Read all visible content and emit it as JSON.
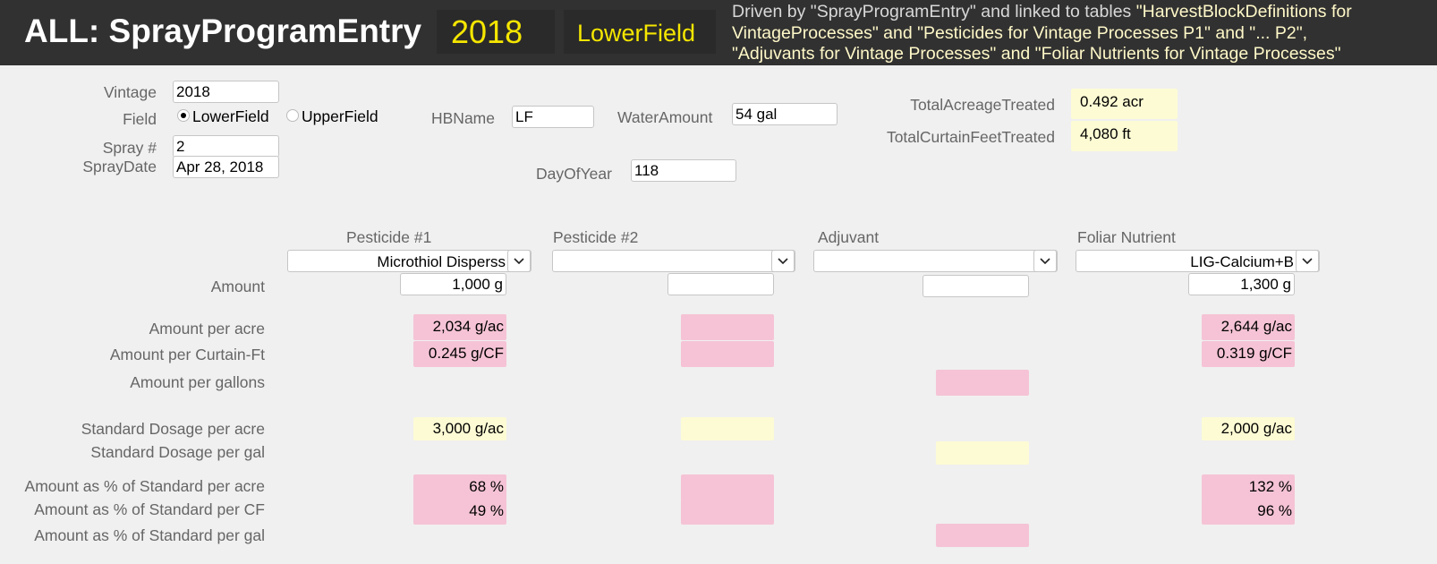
{
  "header": {
    "title": "ALL: SprayProgramEntry",
    "year": "2018",
    "field": "LowerField",
    "description_line1_a": "Driven by \"SprayProgramEntry\" and linked to tables ",
    "description_line1_b": "\"HarvestBlockDefinitions for",
    "description_line2": "VintageProcesses\" and \"Pesticides for Vintage Processes P1\" and \"... P2\",",
    "description_line3": "\"Adjuvants for Vintage Processes\" and \"Foliar Nutrients for Vintage Processes\""
  },
  "form": {
    "vintage_label": "Vintage",
    "vintage_value": "2018",
    "field_label": "Field",
    "field_options": [
      "LowerField",
      "UpperField"
    ],
    "field_selected": "LowerField",
    "spray_label": "Spray #",
    "spray_value": "2",
    "spraydate_label": "SprayDate",
    "spraydate_value": "Apr 28, 2018",
    "hbname_label": "HBName",
    "hbname_value": "LF",
    "water_label": "WaterAmount",
    "water_value": "54 gal",
    "dayofyear_label": "DayOfYear",
    "dayofyear_value": "118",
    "acreage_label": "TotalAcreageTreated",
    "acreage_value": "0.492 acr",
    "curtain_label": "TotalCurtainFeetTreated",
    "curtain_value": "4,080 ft"
  },
  "columns": {
    "p1": "Pesticide #1",
    "p2": "Pesticide #2",
    "adj": "Adjuvant",
    "fol": "Foliar Nutrient"
  },
  "selections": {
    "p1": "Microthiol Disperss",
    "p2": "",
    "adj": "",
    "fol": "LIG-Calcium+B"
  },
  "rows": {
    "amount": "Amount",
    "per_acre": "Amount  per acre",
    "per_cf": "Amount per  Curtain-Ft",
    "per_gal": "Amount per gallons",
    "std_acre": "Standard Dosage per acre",
    "std_gal": "Standard Dosage per gal",
    "pct_acre": "Amount as % of Standard per acre",
    "pct_cf": "Amount as % of Standard per CF",
    "pct_gal": "Amount as % of Standard per gal"
  },
  "values": {
    "p1": {
      "amount": "1,000 g",
      "per_acre": "2,034 g/ac",
      "per_cf": "0.245 g/CF",
      "std_acre": "3,000 g/ac",
      "pct_acre": "68 %",
      "pct_cf": "49 %"
    },
    "p2": {
      "amount": "",
      "per_acre": "",
      "per_cf": "",
      "std_acre": "",
      "pct_acre": "",
      "pct_cf": ""
    },
    "adj": {
      "amount": "",
      "per_gal": "",
      "std_gal": "",
      "pct_gal": ""
    },
    "fol": {
      "amount": "1,300 g",
      "per_acre": "2,644 g/ac",
      "per_cf": "0.319 g/CF",
      "std_acre": "2,000 g/ac",
      "pct_acre": "132 %",
      "pct_cf": "96 %"
    }
  },
  "colors": {
    "header_bg": "#313131",
    "accent_yellow": "#f5e600",
    "calc_pink": "#f5c3d5",
    "ref_yellow": "#fdfbd4"
  },
  "icons": {
    "dropdown": "chevron-down-icon",
    "radio": "radio-icon"
  }
}
